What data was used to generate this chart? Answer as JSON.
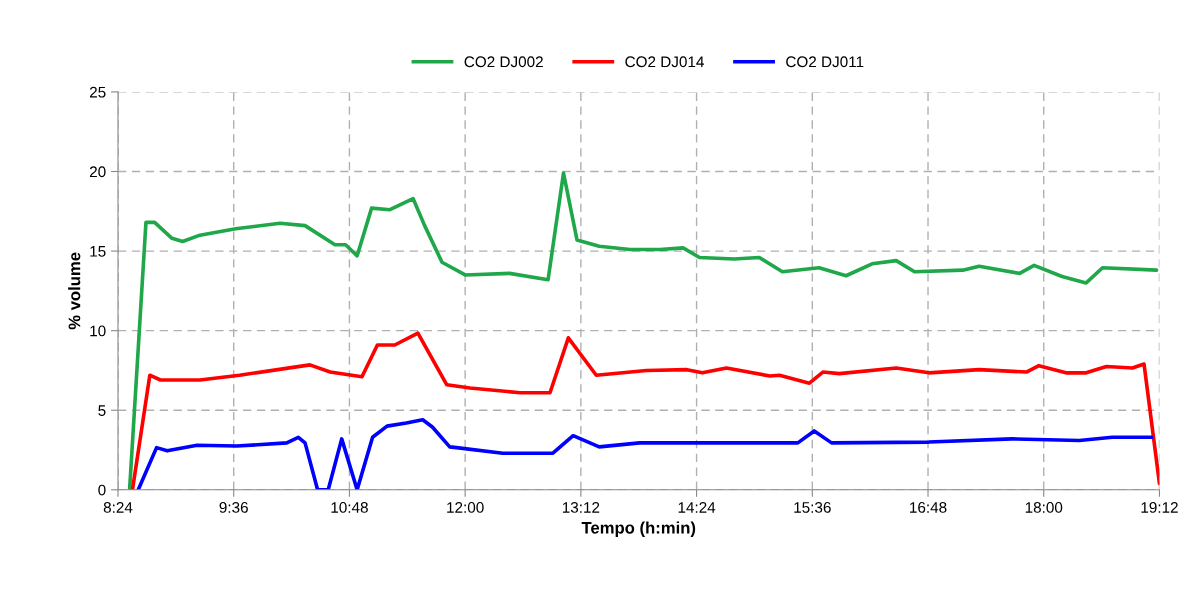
{
  "chart_data": {
    "type": "line",
    "xlabel": "Tempo (h:min)",
    "ylabel": "% volume",
    "xlim": [
      8.4,
      19.2
    ],
    "xticks": [
      {
        "value": 8.4,
        "label": "8:24"
      },
      {
        "value": 9.6,
        "label": "9:36"
      },
      {
        "value": 10.8,
        "label": "10:48"
      },
      {
        "value": 12,
        "label": "12:00"
      },
      {
        "value": 13.2,
        "label": "13:12"
      },
      {
        "value": 14.4,
        "label": "14:24"
      },
      {
        "value": 15.6,
        "label": "15:36"
      },
      {
        "value": 16.8,
        "label": "16:48"
      },
      {
        "value": 18,
        "label": "18:00"
      },
      {
        "value": 19.2,
        "label": "19:12"
      }
    ],
    "ylim": [
      0,
      25
    ],
    "yticks": [
      0,
      5,
      10,
      15,
      20,
      25
    ],
    "grid": true,
    "legend": "top",
    "line_style": "solid",
    "marker": "none",
    "series": [
      {
        "name": "CO2 DJ002",
        "color": "#1fa74a",
        "x": [
          8.52,
          8.69,
          8.78,
          8.96,
          9.07,
          9.25,
          9.62,
          10.08,
          10.34,
          10.65,
          10.76,
          10.88,
          11.03,
          11.22,
          11.46,
          11.58,
          11.76,
          12.0,
          12.46,
          12.86,
          13.02,
          13.16,
          13.39,
          13.71,
          14.02,
          14.26,
          14.43,
          14.79,
          15.05,
          15.29,
          15.67,
          15.95,
          16.22,
          16.47,
          16.66,
          17.16,
          17.33,
          17.75,
          17.9,
          18.19,
          18.44,
          18.61,
          19.17
        ],
        "values": [
          0,
          16.8,
          16.8,
          15.8,
          15.6,
          16.0,
          16.4,
          16.75,
          16.6,
          15.4,
          15.4,
          14.7,
          17.7,
          17.6,
          18.3,
          16.6,
          14.3,
          13.5,
          13.6,
          13.2,
          19.9,
          15.7,
          15.3,
          15.1,
          15.1,
          15.2,
          14.6,
          14.5,
          14.6,
          13.7,
          13.95,
          13.45,
          14.2,
          14.4,
          13.7,
          13.8,
          14.05,
          13.6,
          14.1,
          13.4,
          13.0,
          13.95,
          13.8
        ]
      },
      {
        "name": "CO2 DJ014",
        "color": "#ff0000",
        "x": [
          8.55,
          8.73,
          8.84,
          9.25,
          9.66,
          10.39,
          10.6,
          10.93,
          11.09,
          11.27,
          11.51,
          11.81,
          12.05,
          12.57,
          12.88,
          13.07,
          13.36,
          13.88,
          14.3,
          14.46,
          14.71,
          15.16,
          15.26,
          15.57,
          15.71,
          15.88,
          16.47,
          16.81,
          17.33,
          17.82,
          17.95,
          18.23,
          18.44,
          18.65,
          18.92,
          19.04,
          19.2
        ],
        "values": [
          0,
          7.2,
          6.9,
          6.9,
          7.2,
          7.85,
          7.4,
          7.1,
          9.1,
          9.1,
          9.85,
          6.6,
          6.4,
          6.1,
          6.1,
          9.55,
          7.2,
          7.5,
          7.55,
          7.35,
          7.65,
          7.15,
          7.2,
          6.7,
          7.4,
          7.3,
          7.65,
          7.35,
          7.55,
          7.4,
          7.8,
          7.35,
          7.35,
          7.75,
          7.65,
          7.9,
          0.4
        ]
      },
      {
        "name": "CO2 DJ011",
        "color": "#0000ff",
        "x": [
          8.61,
          8.8,
          8.91,
          9.22,
          9.63,
          10.15,
          10.27,
          10.34,
          10.47,
          10.58,
          10.72,
          10.88,
          11.04,
          11.19,
          11.39,
          11.56,
          11.66,
          11.84,
          11.91,
          12.39,
          12.91,
          13.12,
          13.39,
          13.81,
          14.67,
          15.36,
          15.45,
          15.62,
          15.8,
          16.81,
          17.67,
          18.37,
          18.71,
          19.12
        ],
        "values": [
          0,
          2.65,
          2.45,
          2.8,
          2.75,
          2.95,
          3.3,
          2.95,
          0,
          0,
          3.2,
          0,
          3.3,
          4.0,
          4.2,
          4.4,
          3.95,
          2.7,
          2.65,
          2.3,
          2.3,
          3.4,
          2.7,
          2.95,
          2.95,
          2.95,
          2.95,
          3.7,
          2.95,
          3.0,
          3.2,
          3.1,
          3.3,
          3.3
        ]
      }
    ]
  }
}
